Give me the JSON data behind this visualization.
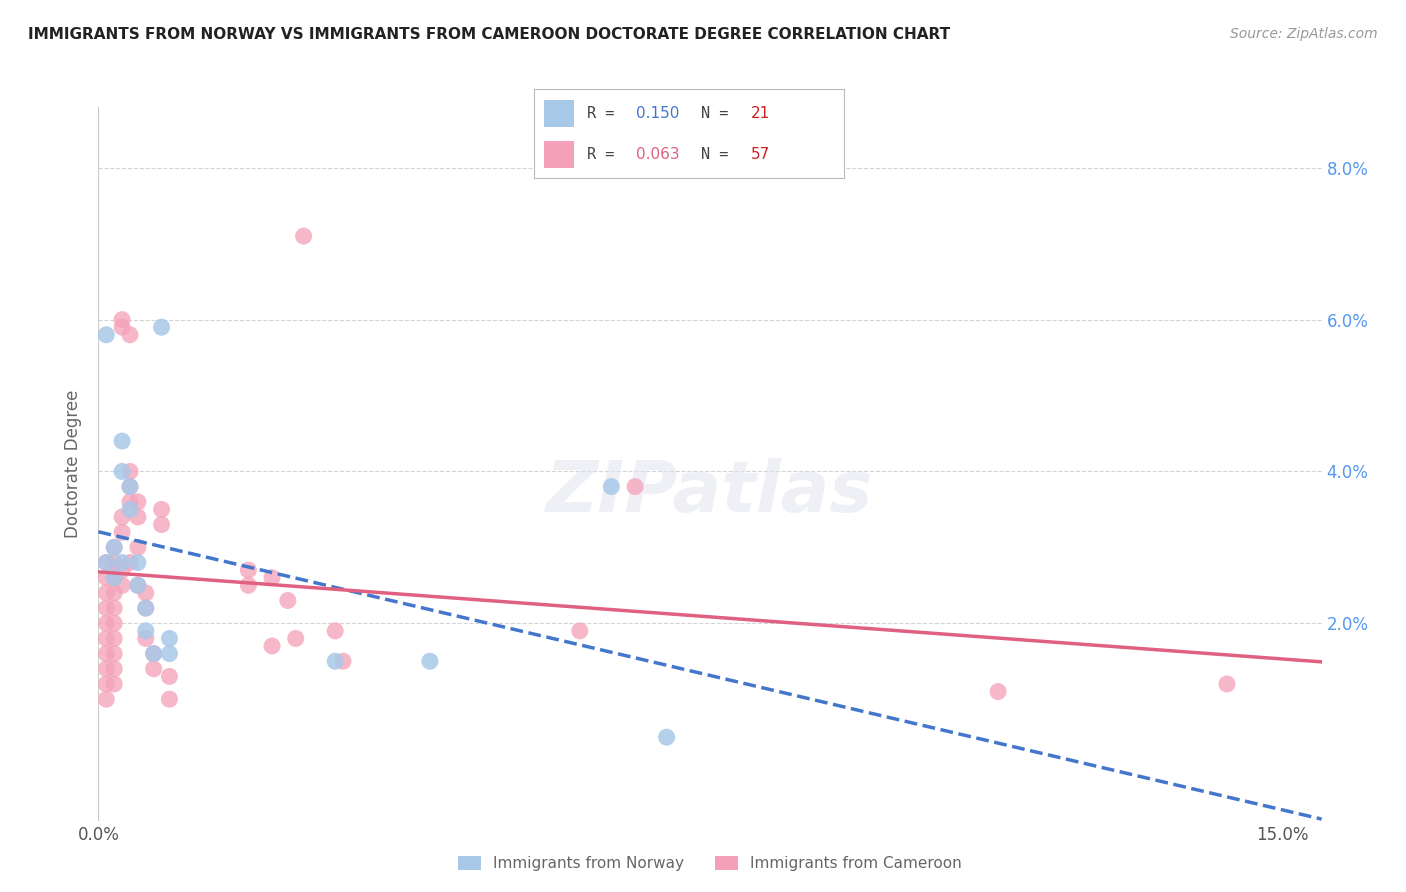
{
  "title": "IMMIGRANTS FROM NORWAY VS IMMIGRANTS FROM CAMEROON DOCTORATE DEGREE CORRELATION CHART",
  "source": "Source: ZipAtlas.com",
  "ylabel": "Doctorate Degree",
  "ylabel_right_ticks": [
    "8.0%",
    "6.0%",
    "4.0%",
    "2.0%"
  ],
  "ylabel_right_vals": [
    0.08,
    0.06,
    0.04,
    0.02
  ],
  "xlim": [
    0.0,
    0.155
  ],
  "ylim": [
    -0.006,
    0.088
  ],
  "norway_color": "#a8c8e8",
  "cameroon_color": "#f4a0b8",
  "norway_line_color": "#4477cc",
  "cameroon_line_color": "#e06080",
  "norway_R": "0.150",
  "norway_N": "21",
  "cameroon_R": "0.063",
  "cameroon_N": "57",
  "norway_x": [
    0.001,
    0.001,
    0.002,
    0.002,
    0.003,
    0.003,
    0.003,
    0.004,
    0.004,
    0.005,
    0.005,
    0.006,
    0.006,
    0.007,
    0.008,
    0.009,
    0.009,
    0.03,
    0.042,
    0.065,
    0.072
  ],
  "norway_y": [
    0.058,
    0.028,
    0.03,
    0.026,
    0.04,
    0.044,
    0.028,
    0.038,
    0.035,
    0.028,
    0.025,
    0.019,
    0.022,
    0.016,
    0.059,
    0.016,
    0.018,
    0.015,
    0.015,
    0.038,
    0.005
  ],
  "cameroon_x": [
    0.001,
    0.001,
    0.001,
    0.001,
    0.001,
    0.001,
    0.001,
    0.001,
    0.001,
    0.001,
    0.002,
    0.002,
    0.002,
    0.002,
    0.002,
    0.002,
    0.002,
    0.002,
    0.002,
    0.002,
    0.003,
    0.003,
    0.003,
    0.003,
    0.003,
    0.003,
    0.004,
    0.004,
    0.004,
    0.004,
    0.004,
    0.005,
    0.005,
    0.005,
    0.005,
    0.006,
    0.006,
    0.006,
    0.007,
    0.007,
    0.008,
    0.008,
    0.009,
    0.009,
    0.019,
    0.019,
    0.022,
    0.022,
    0.024,
    0.025,
    0.026,
    0.03,
    0.031,
    0.061,
    0.068,
    0.114,
    0.143
  ],
  "cameroon_y": [
    0.028,
    0.026,
    0.024,
    0.022,
    0.02,
    0.018,
    0.016,
    0.014,
    0.012,
    0.01,
    0.03,
    0.028,
    0.026,
    0.024,
    0.022,
    0.02,
    0.018,
    0.016,
    0.014,
    0.012,
    0.06,
    0.059,
    0.034,
    0.032,
    0.027,
    0.025,
    0.058,
    0.04,
    0.038,
    0.036,
    0.028,
    0.036,
    0.034,
    0.03,
    0.025,
    0.024,
    0.022,
    0.018,
    0.016,
    0.014,
    0.035,
    0.033,
    0.013,
    0.01,
    0.027,
    0.025,
    0.017,
    0.026,
    0.023,
    0.018,
    0.071,
    0.019,
    0.015,
    0.019,
    0.038,
    0.011,
    0.012
  ],
  "background_color": "#ffffff",
  "grid_color": "#d0d0d0",
  "watermark": "ZIPatlas",
  "legend_label_norway": "Immigrants from Norway",
  "legend_label_cameroon": "Immigrants from Cameroon"
}
